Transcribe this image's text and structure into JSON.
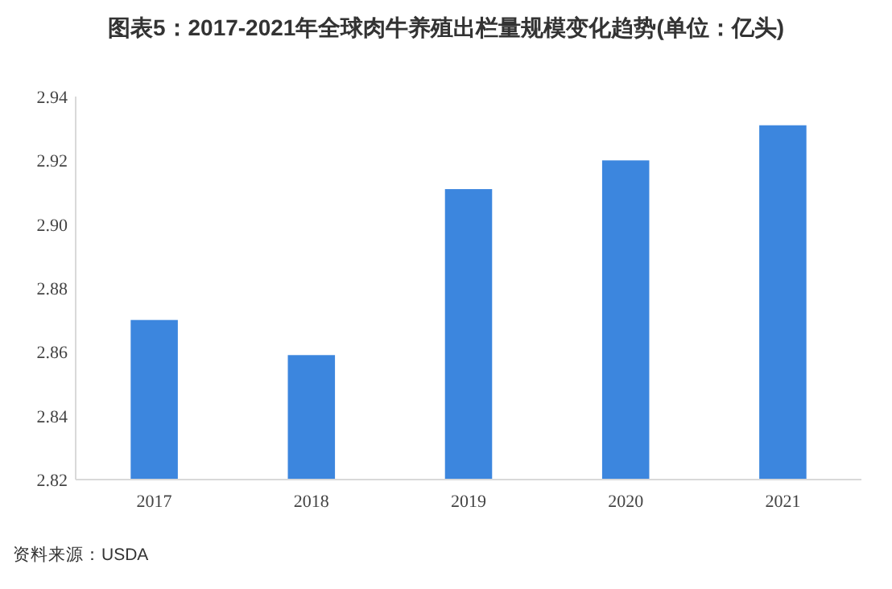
{
  "chart_data": {
    "type": "bar",
    "title": "图表5：2017-2021年全球肉牛养殖出栏量规模变化趋势(单位：亿头)",
    "categories": [
      "2017",
      "2018",
      "2019",
      "2020",
      "2021"
    ],
    "values": [
      2.87,
      2.859,
      2.911,
      2.92,
      2.931
    ],
    "color": "#3c86de",
    "ylim": [
      2.82,
      2.94
    ],
    "yticks": [
      2.82,
      2.84,
      2.86,
      2.88,
      {
        "value": 2.9,
        "label": "2.90"
      },
      2.92,
      2.94
    ],
    "grid": false,
    "annotations": [
      "资料来源：USDA"
    ]
  }
}
